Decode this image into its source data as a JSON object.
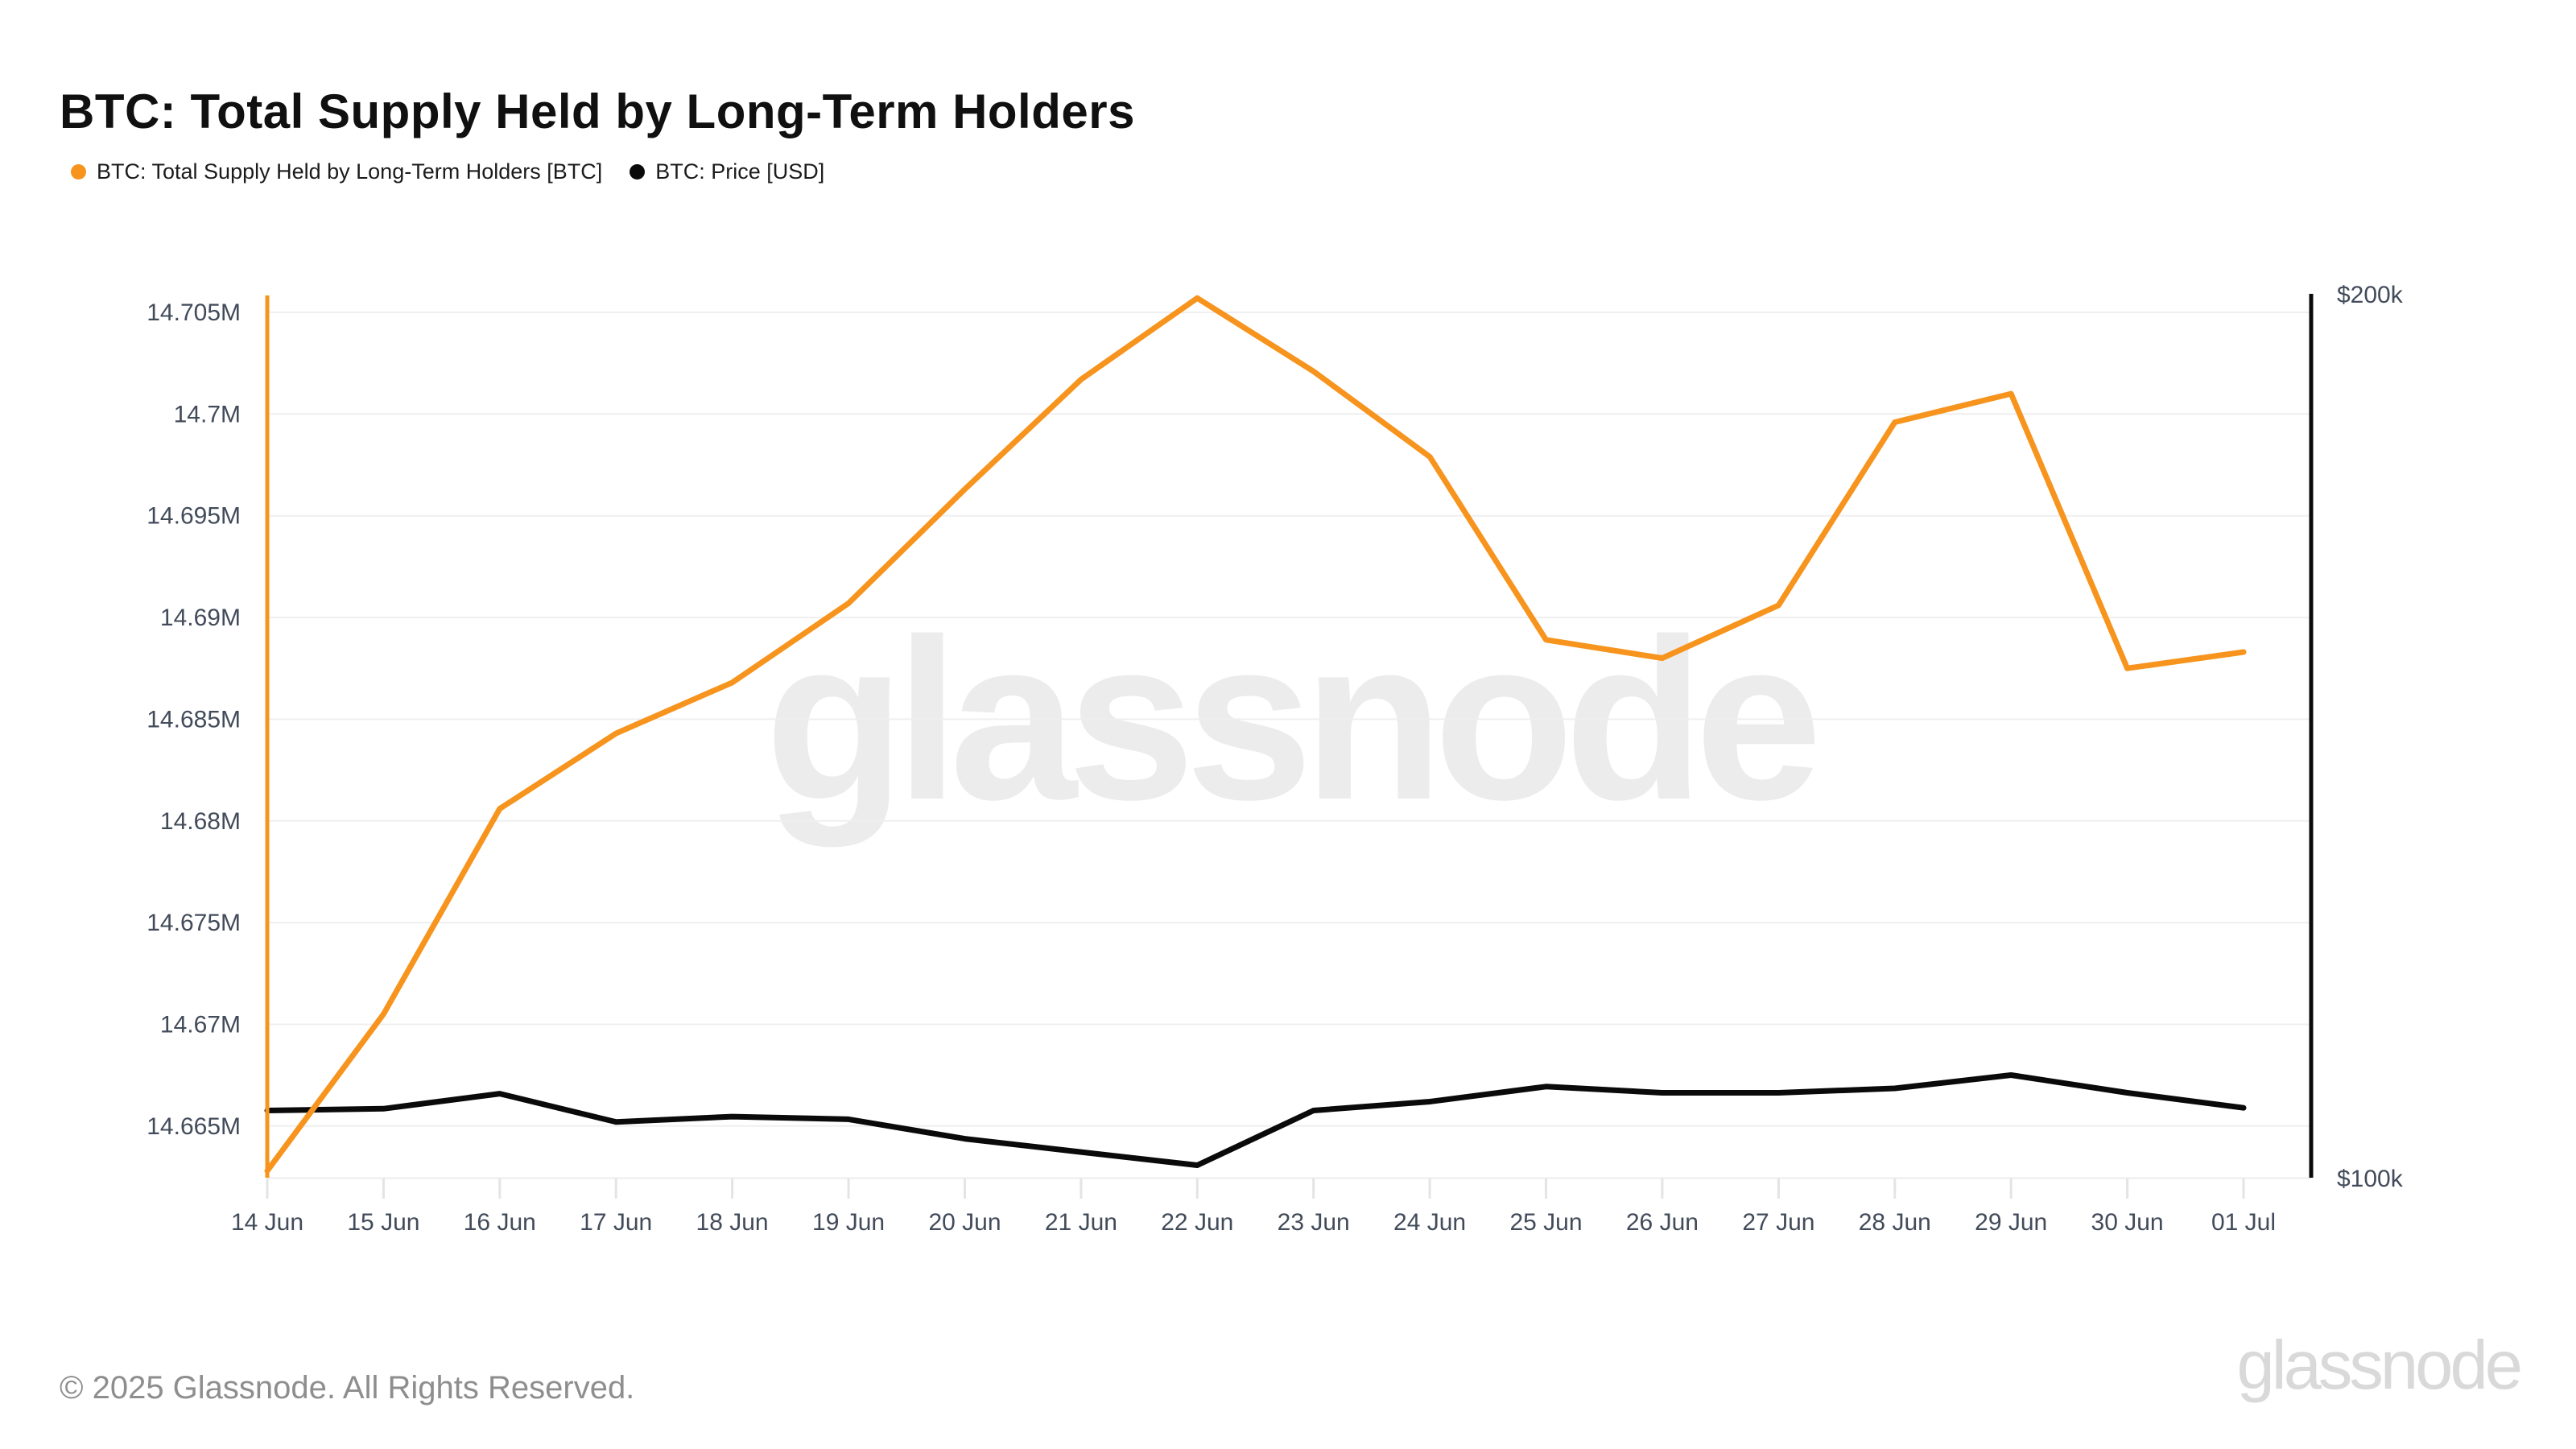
{
  "header": {
    "title": "BTC: Total Supply Held by Long-Term Holders"
  },
  "legend": {
    "items": [
      {
        "label": "BTC: Total Supply Held by Long-Term Holders [BTC]",
        "color": "#F7941E"
      },
      {
        "label": "BTC: Price [USD]",
        "color": "#0A0A0A"
      }
    ]
  },
  "watermarks": {
    "center": "glassnode",
    "corner": "glassnode"
  },
  "footer": {
    "copyright": "© 2025 Glassnode. All Rights Reserved."
  },
  "chart_data": {
    "type": "line",
    "title": "BTC: Total Supply Held by Long-Term Holders",
    "grid": true,
    "legend_position": "top-left",
    "categories": [
      "14 Jun",
      "15 Jun",
      "16 Jun",
      "17 Jun",
      "18 Jun",
      "19 Jun",
      "20 Jun",
      "21 Jun",
      "22 Jun",
      "23 Jun",
      "24 Jun",
      "25 Jun",
      "26 Jun",
      "27 Jun",
      "28 Jun",
      "29 Jun",
      "30 Jun",
      "01 Jul"
    ],
    "series": [
      {
        "name": "BTC: Total Supply Held by Long-Term Holders [BTC]",
        "yaxis": "left",
        "unit": "M BTC",
        "color": "#F7941E",
        "values": [
          14.6628,
          14.6705,
          14.6806,
          14.6843,
          14.6868,
          14.6907,
          14.6963,
          14.7017,
          14.7057,
          14.7021,
          14.6979,
          14.6889,
          14.688,
          14.6906,
          14.6996,
          14.701,
          14.6875,
          14.6883
        ]
      },
      {
        "name": "BTC: Price [USD]",
        "yaxis": "right",
        "unit": "$k",
        "color": "#0A0A0A",
        "values": [
          107.7,
          107.9,
          109.6,
          106.4,
          107.0,
          106.7,
          104.5,
          103.0,
          101.5,
          107.7,
          108.7,
          110.4,
          109.7,
          109.7,
          110.2,
          111.7,
          109.7,
          108.0
        ]
      }
    ],
    "y_left": {
      "tick_values": [
        14.705,
        14.7,
        14.695,
        14.69,
        14.685,
        14.68,
        14.675,
        14.67,
        14.665
      ],
      "tick_labels": [
        "14.705M",
        "14.7M",
        "14.695M",
        "14.69M",
        "14.685M",
        "14.68M",
        "14.675M",
        "14.67M",
        "14.665M"
      ],
      "domain": [
        14.66246,
        14.70591
      ]
    },
    "y_right": {
      "tick_values": [
        200,
        100
      ],
      "tick_labels": [
        "$200k",
        "$100k"
      ],
      "domain": [
        100,
        200
      ]
    },
    "style": {
      "grid_color": "#efefef",
      "baseline_color": "#ececec",
      "tick_mark_color": "#e4e4e4",
      "axis_text_color": "#424b5a",
      "left_axis_line_color": "#F7941E",
      "right_axis_line_color": "#0A0A0A"
    }
  }
}
